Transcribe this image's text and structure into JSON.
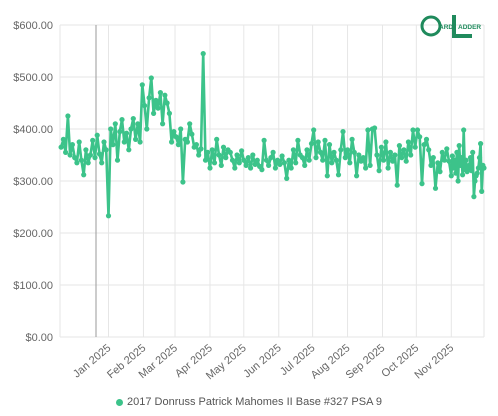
{
  "brand": {
    "logo_text": "CARD LADDER",
    "accent": "#3cc38a",
    "logo_color": "#1f8a5c"
  },
  "chart_data": {
    "type": "line",
    "ylim": [
      0,
      600
    ],
    "y_ticks": [
      0,
      100,
      200,
      300,
      400,
      500,
      600
    ],
    "y_tick_labels": [
      "$0.00",
      "$100.00",
      "$200.00",
      "$300.00",
      "$400.00",
      "$500.00",
      "$600.00"
    ],
    "x_tick_labels": [
      "Jan 2025",
      "Feb 2025",
      "Mar 2025",
      "Apr 2025",
      "May 2025",
      "Jun 2025",
      "Jul 2025",
      "Aug 2025",
      "Sep 2025",
      "Oct 2025",
      "Nov 2025"
    ],
    "x_range": [
      "2024-11-19",
      "2025-11-30"
    ],
    "x_ticks": [
      "2025-01-01",
      "2025-02-01",
      "2025-03-01",
      "2025-04-01",
      "2025-05-01",
      "2025-06-01",
      "2025-07-01",
      "2025-08-01",
      "2025-09-01",
      "2025-10-01",
      "2025-11-01"
    ],
    "grid": true,
    "legend_position": "bottom",
    "series": [
      {
        "name": "2017 Donruss Patrick Mahomes II Base #327 PSA 9",
        "color": "#3cc38a",
        "points": [
          [
            "2024-11-20",
            365
          ],
          [
            "2024-11-22",
            380
          ],
          [
            "2024-11-24",
            355
          ],
          [
            "2024-11-26",
            425
          ],
          [
            "2024-11-28",
            350
          ],
          [
            "2024-11-30",
            370
          ],
          [
            "2024-12-02",
            345
          ],
          [
            "2024-12-04",
            335
          ],
          [
            "2024-12-06",
            375
          ],
          [
            "2024-12-08",
            340
          ],
          [
            "2024-12-10",
            312
          ],
          [
            "2024-12-12",
            360
          ],
          [
            "2024-12-14",
            335
          ],
          [
            "2024-12-16",
            350
          ],
          [
            "2024-12-18",
            378
          ],
          [
            "2024-12-20",
            345
          ],
          [
            "2024-12-22",
            388
          ],
          [
            "2024-12-24",
            352
          ],
          [
            "2024-12-26",
            335
          ],
          [
            "2024-12-28",
            375
          ],
          [
            "2024-12-30",
            360
          ],
          [
            "2025-01-01",
            233
          ],
          [
            "2025-01-03",
            400
          ],
          [
            "2025-01-05",
            370
          ],
          [
            "2025-01-07",
            410
          ],
          [
            "2025-01-09",
            340
          ],
          [
            "2025-01-11",
            395
          ],
          [
            "2025-01-13",
            418
          ],
          [
            "2025-01-15",
            375
          ],
          [
            "2025-01-17",
            392
          ],
          [
            "2025-01-19",
            360
          ],
          [
            "2025-01-21",
            400
          ],
          [
            "2025-01-23",
            420
          ],
          [
            "2025-01-25",
            380
          ],
          [
            "2025-01-27",
            410
          ],
          [
            "2025-01-29",
            375
          ],
          [
            "2025-01-31",
            485
          ],
          [
            "2025-02-02",
            445
          ],
          [
            "2025-02-04",
            400
          ],
          [
            "2025-02-06",
            460
          ],
          [
            "2025-02-08",
            498
          ],
          [
            "2025-02-10",
            430
          ],
          [
            "2025-02-12",
            455
          ],
          [
            "2025-02-14",
            440
          ],
          [
            "2025-02-16",
            470
          ],
          [
            "2025-02-18",
            410
          ],
          [
            "2025-02-20",
            465
          ],
          [
            "2025-02-22",
            450
          ],
          [
            "2025-02-24",
            430
          ],
          [
            "2025-02-26",
            375
          ],
          [
            "2025-02-28",
            395
          ],
          [
            "2025-03-02",
            385
          ],
          [
            "2025-03-04",
            370
          ],
          [
            "2025-03-06",
            400
          ],
          [
            "2025-03-08",
            298
          ],
          [
            "2025-03-10",
            380
          ],
          [
            "2025-03-12",
            375
          ],
          [
            "2025-03-14",
            410
          ],
          [
            "2025-03-16",
            390
          ],
          [
            "2025-03-18",
            365
          ],
          [
            "2025-03-20",
            370
          ],
          [
            "2025-03-22",
            350
          ],
          [
            "2025-03-24",
            362
          ],
          [
            "2025-03-26",
            545
          ],
          [
            "2025-03-28",
            340
          ],
          [
            "2025-03-30",
            355
          ],
          [
            "2025-04-01",
            325
          ],
          [
            "2025-04-03",
            360
          ],
          [
            "2025-04-05",
            335
          ],
          [
            "2025-04-07",
            380
          ],
          [
            "2025-04-09",
            350
          ],
          [
            "2025-04-11",
            330
          ],
          [
            "2025-04-13",
            365
          ],
          [
            "2025-04-15",
            345
          ],
          [
            "2025-04-17",
            360
          ],
          [
            "2025-04-19",
            355
          ],
          [
            "2025-04-21",
            340
          ],
          [
            "2025-04-23",
            325
          ],
          [
            "2025-04-25",
            350
          ],
          [
            "2025-04-27",
            335
          ],
          [
            "2025-04-29",
            358
          ],
          [
            "2025-05-01",
            340
          ],
          [
            "2025-05-03",
            330
          ],
          [
            "2025-05-05",
            345
          ],
          [
            "2025-05-07",
            325
          ],
          [
            "2025-05-09",
            350
          ],
          [
            "2025-05-11",
            332
          ],
          [
            "2025-05-13",
            340
          ],
          [
            "2025-05-15",
            328
          ],
          [
            "2025-05-17",
            322
          ],
          [
            "2025-05-19",
            378
          ],
          [
            "2025-05-21",
            340
          ],
          [
            "2025-05-23",
            330
          ],
          [
            "2025-05-25",
            345
          ],
          [
            "2025-05-27",
            355
          ],
          [
            "2025-05-29",
            325
          ],
          [
            "2025-05-31",
            340
          ],
          [
            "2025-06-02",
            332
          ],
          [
            "2025-06-04",
            348
          ],
          [
            "2025-06-06",
            335
          ],
          [
            "2025-06-08",
            305
          ],
          [
            "2025-06-10",
            340
          ],
          [
            "2025-06-12",
            325
          ],
          [
            "2025-06-14",
            360
          ],
          [
            "2025-06-16",
            335
          ],
          [
            "2025-06-18",
            378
          ],
          [
            "2025-06-20",
            350
          ],
          [
            "2025-06-22",
            345
          ],
          [
            "2025-06-24",
            330
          ],
          [
            "2025-06-26",
            360
          ],
          [
            "2025-06-28",
            340
          ],
          [
            "2025-06-30",
            372
          ],
          [
            "2025-07-02",
            398
          ],
          [
            "2025-07-04",
            345
          ],
          [
            "2025-07-06",
            375
          ],
          [
            "2025-07-08",
            355
          ],
          [
            "2025-07-10",
            340
          ],
          [
            "2025-07-12",
            378
          ],
          [
            "2025-07-14",
            310
          ],
          [
            "2025-07-16",
            370
          ],
          [
            "2025-07-18",
            335
          ],
          [
            "2025-07-20",
            355
          ],
          [
            "2025-07-22",
            340
          ],
          [
            "2025-07-24",
            312
          ],
          [
            "2025-07-26",
            360
          ],
          [
            "2025-07-28",
            395
          ],
          [
            "2025-07-30",
            345
          ],
          [
            "2025-08-01",
            360
          ],
          [
            "2025-08-03",
            335
          ],
          [
            "2025-08-05",
            380
          ],
          [
            "2025-08-07",
            355
          ],
          [
            "2025-08-09",
            310
          ],
          [
            "2025-08-11",
            350
          ],
          [
            "2025-08-13",
            338
          ],
          [
            "2025-08-15",
            345
          ],
          [
            "2025-08-17",
            325
          ],
          [
            "2025-08-19",
            398
          ],
          [
            "2025-08-21",
            330
          ],
          [
            "2025-08-23",
            400
          ],
          [
            "2025-08-25",
            402
          ],
          [
            "2025-08-27",
            350
          ],
          [
            "2025-08-29",
            320
          ],
          [
            "2025-08-31",
            365
          ],
          [
            "2025-09-02",
            340
          ],
          [
            "2025-09-04",
            375
          ],
          [
            "2025-09-06",
            325
          ],
          [
            "2025-09-08",
            355
          ],
          [
            "2025-09-10",
            338
          ],
          [
            "2025-09-12",
            350
          ],
          [
            "2025-09-14",
            292
          ],
          [
            "2025-09-16",
            368
          ],
          [
            "2025-09-18",
            345
          ],
          [
            "2025-09-20",
            360
          ],
          [
            "2025-09-22",
            338
          ],
          [
            "2025-09-24",
            375
          ],
          [
            "2025-09-26",
            350
          ],
          [
            "2025-09-28",
            398
          ],
          [
            "2025-09-30",
            365
          ],
          [
            "2025-10-02",
            398
          ],
          [
            "2025-10-04",
            385
          ],
          [
            "2025-10-06",
            295
          ],
          [
            "2025-10-08",
            370
          ],
          [
            "2025-10-10",
            380
          ],
          [
            "2025-10-12",
            360
          ],
          [
            "2025-10-14",
            330
          ],
          [
            "2025-10-16",
            345
          ],
          [
            "2025-10-18",
            286
          ],
          [
            "2025-10-20",
            335
          ],
          [
            "2025-10-22",
            318
          ],
          [
            "2025-10-24",
            355
          ],
          [
            "2025-10-26",
            340
          ],
          [
            "2025-10-28",
            362
          ],
          [
            "2025-10-30",
            338
          ],
          [
            "2025-11-01",
            310
          ],
          [
            "2025-11-02",
            348
          ],
          [
            "2025-11-03",
            325
          ],
          [
            "2025-11-04",
            340
          ],
          [
            "2025-11-05",
            315
          ],
          [
            "2025-11-06",
            355
          ],
          [
            "2025-11-07",
            300
          ],
          [
            "2025-11-08",
            368
          ],
          [
            "2025-11-09",
            330
          ],
          [
            "2025-11-10",
            345
          ],
          [
            "2025-11-11",
            312
          ],
          [
            "2025-11-12",
            398
          ],
          [
            "2025-11-13",
            322
          ],
          [
            "2025-11-14",
            340
          ],
          [
            "2025-11-15",
            318
          ],
          [
            "2025-11-16",
            325
          ],
          [
            "2025-11-17",
            330
          ],
          [
            "2025-11-18",
            345
          ],
          [
            "2025-11-19",
            320
          ],
          [
            "2025-11-20",
            355
          ],
          [
            "2025-11-21",
            270
          ],
          [
            "2025-11-22",
            300
          ],
          [
            "2025-11-23",
            310
          ],
          [
            "2025-11-24",
            315
          ],
          [
            "2025-11-25",
            325
          ],
          [
            "2025-11-26",
            345
          ],
          [
            "2025-11-27",
            372
          ],
          [
            "2025-11-28",
            280
          ],
          [
            "2025-11-29",
            330
          ],
          [
            "2025-11-30",
            325
          ]
        ]
      }
    ]
  }
}
